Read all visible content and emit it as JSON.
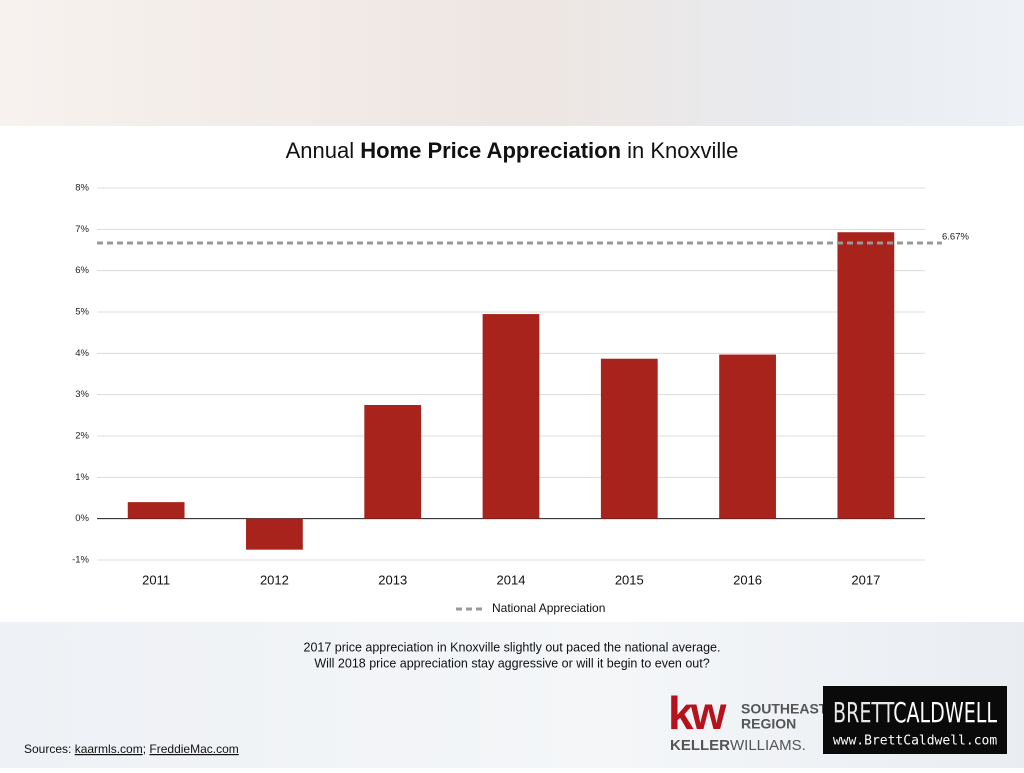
{
  "chart_data": {
    "type": "bar",
    "title": [
      {
        "text": "Annual "
      },
      {
        "text": "Home Price Appreciation",
        "bold": true
      },
      {
        "text": " in Knoxville"
      }
    ],
    "categories": [
      "2011",
      "2012",
      "2013",
      "2014",
      "2015",
      "2016",
      "2017"
    ],
    "values": [
      0.4,
      -0.75,
      2.75,
      4.95,
      3.87,
      3.97,
      6.93
    ],
    "color": "#a8231c",
    "ylim": [
      -1,
      8
    ],
    "yticks": [
      {
        "value": -1,
        "label": "-1%"
      },
      {
        "value": 0,
        "label": "0%"
      },
      {
        "value": 1,
        "label": "1%"
      },
      {
        "value": 2,
        "label": "2%"
      },
      {
        "value": 3,
        "label": "3%"
      },
      {
        "value": 4,
        "label": "4%"
      },
      {
        "value": 5,
        "label": "5%"
      },
      {
        "value": 6,
        "label": "6%"
      },
      {
        "value": 7,
        "label": "7%"
      },
      {
        "value": 8,
        "label": "8%"
      }
    ],
    "grid": true,
    "reference_lines": [
      {
        "name": "National Appreciation",
        "value": 6.67,
        "label": "6.67%",
        "color": "#999999",
        "dashed": true
      }
    ],
    "legend": "bottom"
  },
  "caption": [
    "2017 price appreciation in Knoxville slightly out paced the national average.",
    "Will 2018 price appreciation stay aggressive or will it begin to even out?"
  ],
  "sources": {
    "label": "Sources:",
    "links": [
      "kaarmls.com",
      "FreddieMac.com"
    ],
    "separator": ";"
  },
  "kw_logo": {
    "mark": "kw",
    "region": [
      "SOUTHEAST",
      "REGION"
    ],
    "brand": [
      "KELLER",
      "WILLIAMS."
    ]
  },
  "brett_logo": {
    "name": [
      "BRETT",
      "CALDWELL"
    ],
    "url": "www.BrettCaldwell.com"
  }
}
